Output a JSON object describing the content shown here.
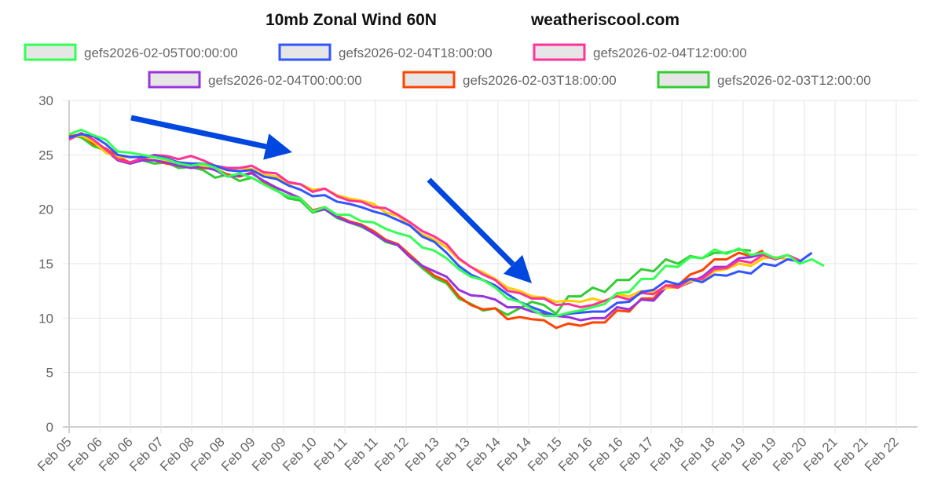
{
  "chart_data": {
    "type": "line",
    "title": "10mb Zonal Wind 60N",
    "source": "weatheriscool.com",
    "xlabel": "",
    "ylabel": "",
    "ylim": [
      0,
      30
    ],
    "y_ticks": [
      0,
      5,
      10,
      15,
      20,
      25,
      30
    ],
    "x_start": "2026-02-05T00:00",
    "x_interval": "6h",
    "x_tick_labels": [
      "Feb 05",
      "Feb 06",
      "Feb 06",
      "Feb 07",
      "Feb 08",
      "Feb 08",
      "Feb 09",
      "Feb 09",
      "Feb 10",
      "Feb 11",
      "Feb 11",
      "Feb 12",
      "Feb 13",
      "Feb 13",
      "Feb 14",
      "Feb 14",
      "Feb 15",
      "Feb 16",
      "Feb 16",
      "Feb 17",
      "Feb 18",
      "Feb 18",
      "Feb 19",
      "Feb 19",
      "Feb 20",
      "Feb 21",
      "Feb 21",
      "Feb 22"
    ],
    "grid": true,
    "legend": "top",
    "annotations": [
      "blue arrow pointing down-right (upper left)",
      "blue arrow pointing down-right (center)"
    ],
    "annotation_color": "#0047e0",
    "series": [
      {
        "name": "gefs2026-02-05T00:00:00",
        "color": "#33ff55",
        "values": [
          26.9,
          27.3,
          26.8,
          26.4,
          25.3,
          25.2,
          25.0,
          24.8,
          24.6,
          24.2,
          24.0,
          24.2,
          23.8,
          23.0,
          23.3,
          22.9,
          22.3,
          21.7,
          21.2,
          21.0,
          19.8,
          20.2,
          19.5,
          19.5,
          18.9,
          18.8,
          18.2,
          17.8,
          17.5,
          16.5,
          16.2,
          15.5,
          14.5,
          13.8,
          13.5,
          12.8,
          11.8,
          11.5,
          10.8,
          10.2,
          10.2,
          10.5,
          10.7,
          11.0,
          11.3,
          12.3,
          12.4,
          13.6,
          13.6,
          14.8,
          14.7,
          15.6,
          15.5,
          16.3,
          15.9,
          16.4,
          15.8,
          16.0,
          15.5,
          15.8,
          15.0,
          15.4,
          14.8
        ]
      },
      {
        "name": "gefs2026-02-04T18:00:00",
        "color": "#3355ff",
        "values": [
          26.6,
          26.9,
          26.7,
          26.0,
          25.0,
          24.8,
          24.8,
          24.9,
          24.7,
          24.3,
          24.2,
          24.2,
          24.0,
          23.6,
          23.5,
          23.6,
          23.0,
          22.8,
          22.2,
          21.8,
          21.2,
          21.3,
          20.7,
          20.5,
          20.2,
          19.8,
          19.5,
          19.0,
          18.5,
          17.5,
          17.0,
          16.0,
          14.8,
          14.0,
          13.5,
          13.0,
          12.2,
          11.5,
          11.0,
          10.6,
          10.2,
          10.4,
          10.5,
          10.6,
          10.6,
          11.4,
          11.5,
          12.4,
          12.6,
          13.4,
          13.1,
          13.6,
          13.3,
          14.0,
          13.9,
          14.3,
          14.1,
          15.0,
          14.8,
          15.4,
          15.2,
          16.0
        ]
      },
      {
        "name": "gefs2026-02-04T12:00:00",
        "color": "#ff3399",
        "values": [
          26.4,
          27.0,
          26.4,
          25.5,
          24.6,
          24.3,
          24.7,
          25.0,
          24.9,
          24.6,
          24.9,
          24.5,
          24.0,
          23.8,
          23.8,
          24.0,
          23.4,
          23.3,
          22.5,
          22.3,
          21.6,
          21.9,
          21.2,
          20.8,
          20.7,
          20.2,
          20.1,
          19.5,
          18.8,
          18.0,
          17.5,
          16.8,
          15.5,
          14.7,
          14.0,
          13.5,
          12.5,
          12.3,
          11.8,
          11.8,
          11.2,
          11.3,
          11.0,
          11.2,
          11.6,
          12.0,
          11.7,
          12.3,
          12.2,
          13.0,
          12.8,
          13.6,
          13.6,
          14.5,
          14.6,
          15.3,
          15.1,
          15.8,
          15.4,
          15.8,
          15.3
        ]
      },
      {
        "name": "",
        "color": "#ffcc00",
        "values": [
          26.5,
          26.8,
          26.2,
          25.2,
          24.8,
          24.8,
          24.8,
          24.8,
          24.5,
          24.3,
          24.2,
          24.0,
          23.9,
          23.6,
          23.8,
          23.7,
          23.2,
          23.0,
          22.4,
          22.3,
          21.8,
          21.9,
          21.3,
          21.0,
          20.8,
          20.5,
          19.7,
          19.4,
          18.5,
          17.7,
          17.2,
          16.5,
          15.4,
          14.7,
          14.2,
          13.6,
          12.8,
          12.5,
          12.0,
          11.9,
          11.5,
          11.6,
          11.5,
          11.8,
          11.5,
          12.2,
          12.0,
          12.5,
          12.4,
          12.8,
          12.8,
          13.4,
          13.5,
          14.3,
          14.5,
          15.0,
          14.8,
          15.5,
          15.6,
          15.4
        ]
      },
      {
        "name": "gefs2026-02-04T00:00:00",
        "color": "#9933dd",
        "values": [
          26.5,
          26.8,
          26.3,
          25.5,
          24.5,
          24.2,
          24.5,
          24.5,
          24.3,
          24.0,
          23.8,
          23.9,
          23.6,
          23.0,
          23.1,
          23.3,
          22.6,
          22.0,
          21.5,
          21.0,
          19.8,
          20.0,
          19.3,
          18.8,
          18.5,
          17.8,
          17.1,
          16.7,
          15.6,
          14.8,
          14.3,
          13.8,
          12.6,
          12.1,
          12.0,
          11.7,
          11.0,
          11.0,
          10.6,
          10.4,
          10.2,
          10.1,
          9.8,
          10.0,
          10.0,
          11.0,
          10.8,
          11.7,
          11.6,
          12.8,
          12.8,
          13.3,
          13.8,
          14.7,
          14.7,
          15.5,
          15.6,
          15.9
        ]
      },
      {
        "name": "gefs2026-02-03T18:00:00",
        "color": "#ff4400",
        "values": [
          26.7,
          26.9,
          26.0,
          25.6,
          24.8,
          24.3,
          24.6,
          24.5,
          24.2,
          24.0,
          24.0,
          23.8,
          23.7,
          23.2,
          23.0,
          23.4,
          22.5,
          22.0,
          21.5,
          21.0,
          19.9,
          20.2,
          19.4,
          18.9,
          18.6,
          18.0,
          17.2,
          16.8,
          15.8,
          14.8,
          13.9,
          13.4,
          12.0,
          11.2,
          10.8,
          10.9,
          9.9,
          10.1,
          9.9,
          9.8,
          9.1,
          9.5,
          9.3,
          9.6,
          9.6,
          10.7,
          10.6,
          11.8,
          11.8,
          13.0,
          13.0,
          14.0,
          14.4,
          15.4,
          15.4,
          16.0,
          15.7,
          16.2
        ]
      },
      {
        "name": "gefs2026-02-03T12:00:00",
        "color": "#33cc33",
        "values": [
          26.8,
          26.6,
          25.8,
          25.4,
          24.5,
          24.2,
          24.5,
          24.2,
          24.3,
          23.8,
          23.9,
          23.6,
          22.9,
          23.2,
          22.6,
          22.9,
          22.3,
          21.8,
          21.0,
          20.8,
          19.7,
          20.0,
          19.2,
          18.8,
          18.4,
          17.8,
          17.0,
          16.7,
          15.6,
          14.6,
          13.7,
          13.2,
          11.8,
          11.3,
          10.7,
          10.9,
          10.3,
          10.9,
          11.5,
          11.2,
          10.4,
          12.0,
          12.0,
          12.8,
          12.4,
          13.5,
          13.5,
          14.5,
          14.3,
          15.4,
          15.0,
          15.7,
          15.5,
          16.0,
          16.0,
          16.3,
          16.2
        ]
      }
    ]
  }
}
